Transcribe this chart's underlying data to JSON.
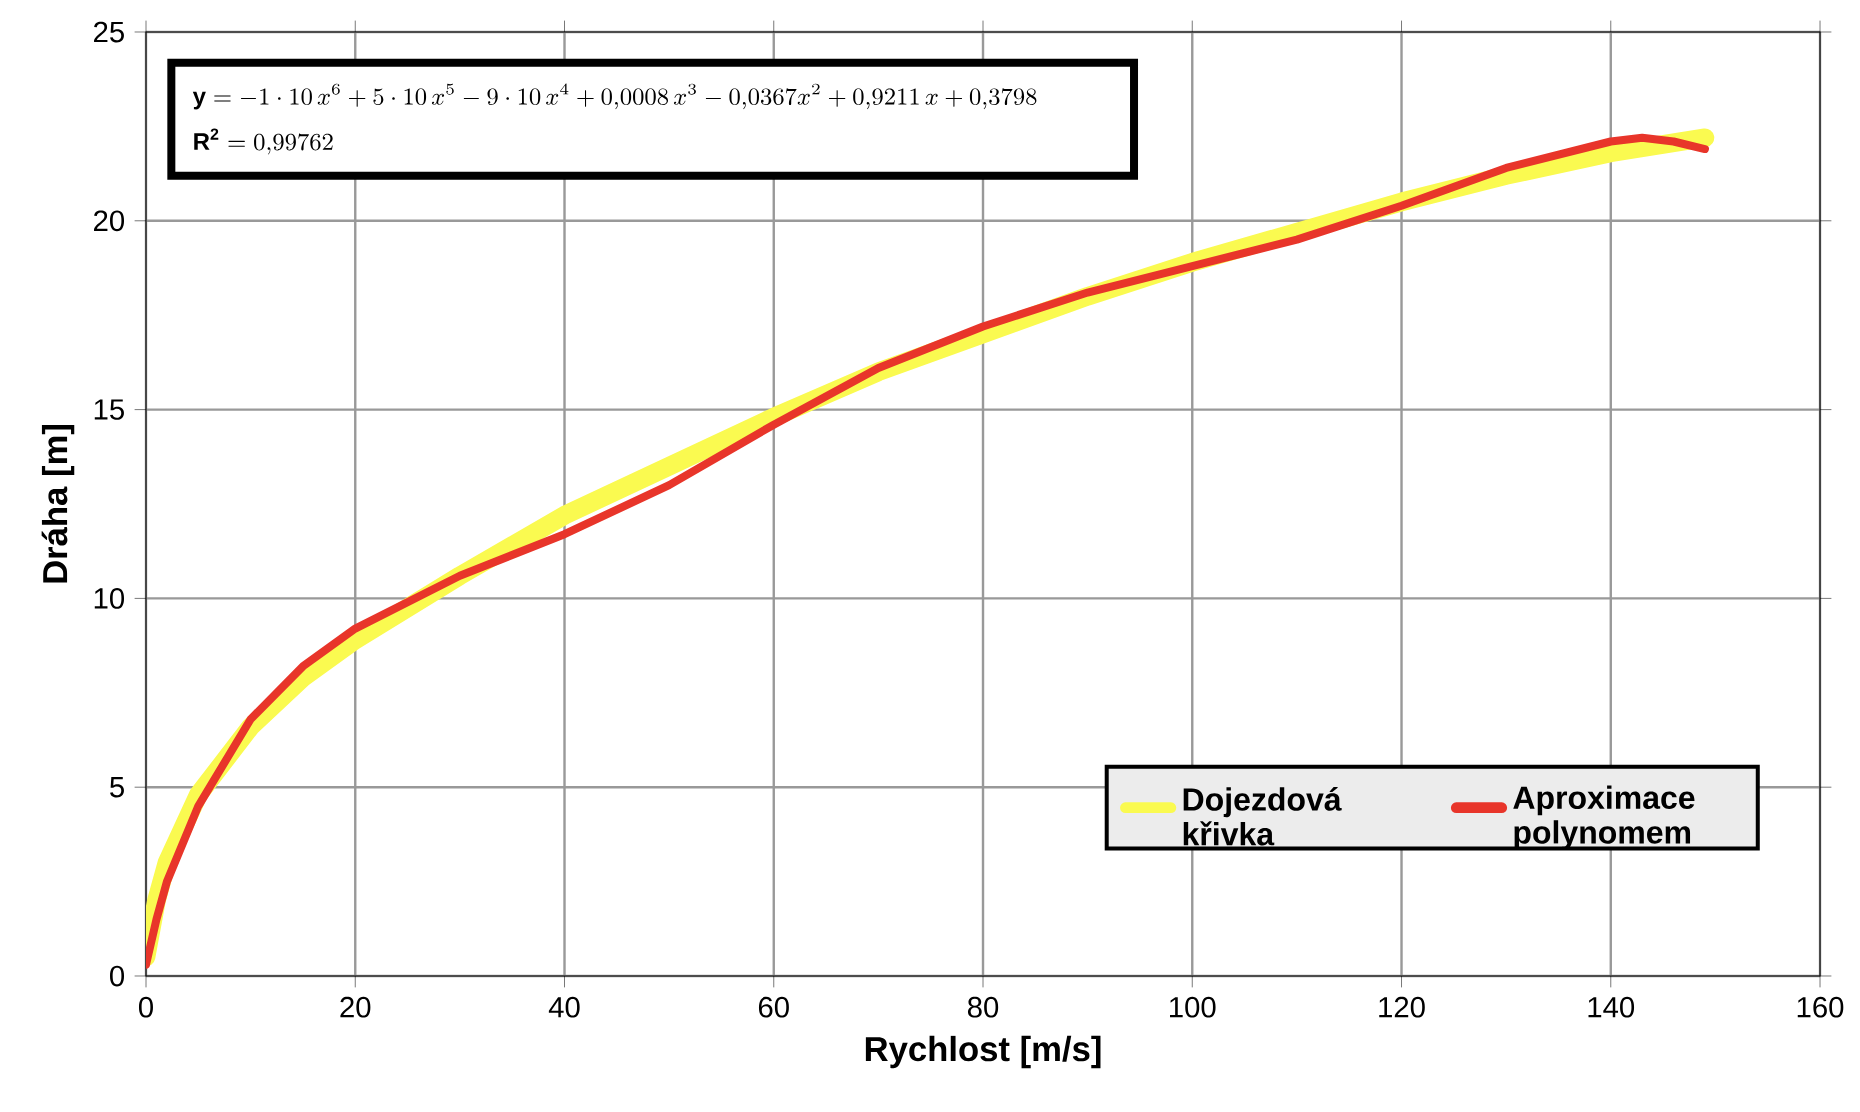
{
  "chart_data": {
    "type": "line",
    "xlabel": "Rychlost [m/s]",
    "ylabel": "Dráha [m]",
    "xlim": [
      0,
      160
    ],
    "xticks": [
      0,
      20,
      40,
      60,
      80,
      100,
      120,
      140,
      160
    ],
    "ylim": [
      0,
      25
    ],
    "yticks": [
      0,
      5,
      10,
      15,
      20,
      25
    ],
    "grid": true,
    "legend": "bottom right",
    "marker": "none",
    "line_style": "solid",
    "annotations": [
      "\\mathbf{y} = -1\\cdot 10\\,x^{6} + 5\\cdot 10\\,x^{5} - 9\\cdot 10\\,x^{4} + 0{,}0008\\,x^{3} - 0{,}0367x^{2} + 0{,}9211\\,x + 0{,}3798",
      "\\mathbf{R^2} = 0{,}99762"
    ],
    "series": [
      {
        "name": "Dojezdová křivka",
        "color": "#fafa50",
        "x": [
          0,
          1,
          2,
          5,
          10,
          15,
          20,
          30,
          40,
          50,
          60,
          70,
          80,
          90,
          100,
          110,
          120,
          130,
          140,
          149
        ],
        "values": [
          0.5,
          2.0,
          3.0,
          4.8,
          6.6,
          7.9,
          8.9,
          10.6,
          12.2,
          13.5,
          14.8,
          16.0,
          17.0,
          18.0,
          18.9,
          19.7,
          20.5,
          21.2,
          21.8,
          22.2
        ]
      },
      {
        "name": "Aproximace polynomem",
        "color": "#e8352a",
        "x": [
          0,
          1,
          2,
          5,
          10,
          15,
          20,
          30,
          40,
          50,
          60,
          70,
          80,
          90,
          100,
          110,
          120,
          130,
          140,
          143,
          146,
          149
        ],
        "values": [
          0.3,
          1.5,
          2.5,
          4.5,
          6.8,
          8.2,
          9.2,
          10.6,
          11.7,
          13.0,
          14.6,
          16.1,
          17.2,
          18.1,
          18.8,
          19.5,
          20.4,
          21.4,
          22.1,
          22.2,
          22.1,
          21.9
        ]
      }
    ]
  }
}
